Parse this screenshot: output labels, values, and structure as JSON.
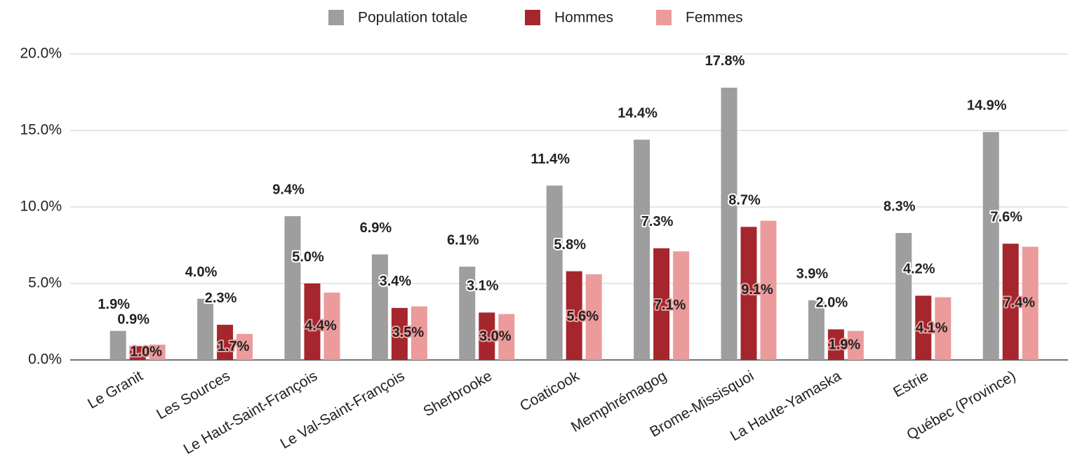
{
  "chart_data": {
    "type": "bar",
    "legend": "top",
    "grid": true,
    "categories": [
      "Le Granit",
      "Les Sources",
      "Le Haut-Saint-François",
      "Le Val-Saint-François",
      "Sherbrooke",
      "Coaticook",
      "Memphrémagog",
      "Brome-Missisquoi",
      "La Haute-Yamaska",
      "Estrie",
      "Québec (Province)"
    ],
    "series": [
      {
        "name": "Population totale",
        "color": "#9e9e9e",
        "values": [
          1.9,
          4.0,
          9.4,
          6.9,
          6.1,
          11.4,
          14.4,
          17.8,
          3.9,
          8.3,
          14.9
        ],
        "value_labels": [
          "1.9%",
          "4.0%",
          "9.4%",
          "6.9%",
          "6.1%",
          "11.4%",
          "14.4%",
          "17.8%",
          "3.9%",
          "8.3%",
          "14.9%"
        ]
      },
      {
        "name": "Hommes",
        "color": "#a6262d",
        "values": [
          0.9,
          2.3,
          5.0,
          3.4,
          3.1,
          5.8,
          7.3,
          8.7,
          2.0,
          4.2,
          7.6
        ],
        "value_labels": [
          "0.9%",
          "2.3%",
          "5.0%",
          "3.4%",
          "3.1%",
          "5.8%",
          "7.3%",
          "8.7%",
          "2.0%",
          "4.2%",
          "7.6%"
        ]
      },
      {
        "name": "Femmes",
        "color": "#eb9b9b",
        "values": [
          1.0,
          1.7,
          4.4,
          3.5,
          3.0,
          5.6,
          7.1,
          9.1,
          1.9,
          4.1,
          7.4
        ],
        "value_labels": [
          "1.0%",
          "1.7%",
          "4.4%",
          "3.5%",
          "3.0%",
          "5.6%",
          "7.1%",
          "9.1%",
          "1.9%",
          "4.1%",
          "7.4%"
        ]
      }
    ],
    "ylim": [
      0,
      20
    ],
    "yticks": [
      {
        "value": 0,
        "label": "0.0%"
      },
      {
        "value": 5,
        "label": "5.0%"
      },
      {
        "value": 10,
        "label": "10.0%"
      },
      {
        "value": 15,
        "label": "15.0%"
      },
      {
        "value": 20,
        "label": "20.0%"
      }
    ]
  }
}
